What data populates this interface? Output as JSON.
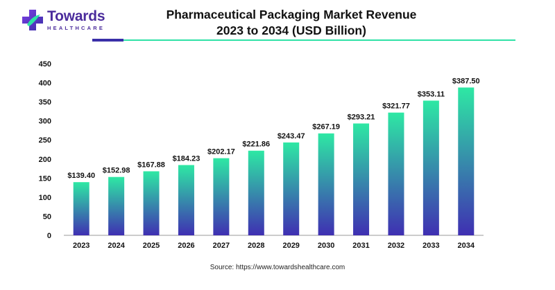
{
  "brand": {
    "name": "Towards",
    "tagline": "HEALTHCARE",
    "colors": {
      "purple": "#4b2c9c",
      "teal": "#2ee2a6"
    }
  },
  "title_line1": "Pharmaceutical Packaging Market Revenue",
  "title_line2": "2023 to 2034 (USD Billion)",
  "source": "Source: https://www.towardshealthcare.com",
  "chart_data": {
    "type": "bar",
    "title": "Pharmaceutical Packaging Market Revenue 2023 to 2034 (USD Billion)",
    "xlabel": "",
    "ylabel": "",
    "categories": [
      "2023",
      "2024",
      "2025",
      "2026",
      "2027",
      "2028",
      "2029",
      "2030",
      "2031",
      "2032",
      "2033",
      "2034"
    ],
    "values": [
      139.4,
      152.98,
      167.88,
      184.23,
      202.17,
      221.86,
      243.47,
      267.19,
      293.21,
      321.77,
      353.11,
      387.5
    ],
    "data_labels": [
      "$139.40",
      "$152.98",
      "$167.88",
      "$184.23",
      "$202.17",
      "$221.86",
      "$243.47",
      "$267.19",
      "$293.21",
      "$321.77",
      "$353.11",
      "$387.50"
    ],
    "ylim": [
      0,
      450
    ],
    "yticks": [
      "0",
      "50",
      "100",
      "150",
      "200",
      "250",
      "300",
      "350",
      "400",
      "450"
    ],
    "grid": false,
    "legend": "none",
    "bar_gradient": {
      "top": "#2ee8a4",
      "bottom": "#3f2fb2"
    }
  }
}
